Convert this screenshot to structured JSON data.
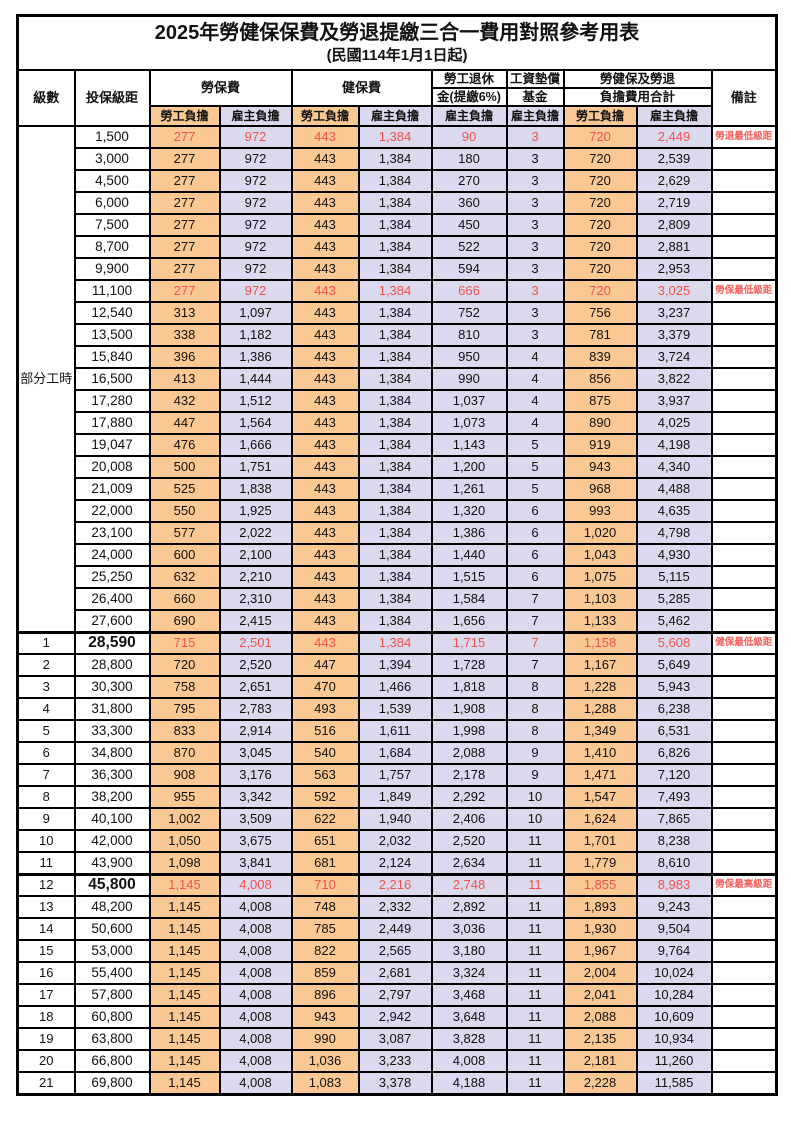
{
  "header": {
    "title": "2025年勞健保保費及勞退提繳三合一費用對照參考用表",
    "subtitle": "(民國114年1月1日起)"
  },
  "columns": {
    "level": "級數",
    "bracket": "投保級距",
    "labor_ins": "勞保費",
    "health_ins": "健保費",
    "pension_line1": "勞工退休",
    "pension_line2": "金(提繳6%)",
    "wage_fund_line1": "工資墊償",
    "wage_fund_line2": "基金",
    "total_line1": "勞健保及勞退",
    "total_line2": "負擔費用合計",
    "remark": "備註",
    "employee_share": "勞工負擔",
    "employer_share": "雇主負擔"
  },
  "part_time_label": "部分工時",
  "colors": {
    "employee_bg": "#FAC993",
    "employer_bg": "#DBD9EE",
    "highlight_text": "#F0524E",
    "border": "#000000"
  },
  "rows": [
    {
      "level": "",
      "bracket": "1,500",
      "values": [
        "277",
        "972",
        "443",
        "1,384",
        "90",
        "3",
        "720",
        "2,449"
      ],
      "remark": "勞退最低級距",
      "red": true,
      "bold": false
    },
    {
      "level": "",
      "bracket": "3,000",
      "values": [
        "277",
        "972",
        "443",
        "1,384",
        "180",
        "3",
        "720",
        "2,539"
      ],
      "remark": "",
      "red": false,
      "bold": false
    },
    {
      "level": "",
      "bracket": "4,500",
      "values": [
        "277",
        "972",
        "443",
        "1,384",
        "270",
        "3",
        "720",
        "2,629"
      ],
      "remark": "",
      "red": false,
      "bold": false
    },
    {
      "level": "",
      "bracket": "6,000",
      "values": [
        "277",
        "972",
        "443",
        "1,384",
        "360",
        "3",
        "720",
        "2,719"
      ],
      "remark": "",
      "red": false,
      "bold": false
    },
    {
      "level": "",
      "bracket": "7,500",
      "values": [
        "277",
        "972",
        "443",
        "1,384",
        "450",
        "3",
        "720",
        "2,809"
      ],
      "remark": "",
      "red": false,
      "bold": false
    },
    {
      "level": "",
      "bracket": "8,700",
      "values": [
        "277",
        "972",
        "443",
        "1,384",
        "522",
        "3",
        "720",
        "2,881"
      ],
      "remark": "",
      "red": false,
      "bold": false
    },
    {
      "level": "",
      "bracket": "9,900",
      "values": [
        "277",
        "972",
        "443",
        "1,384",
        "594",
        "3",
        "720",
        "2,953"
      ],
      "remark": "",
      "red": false,
      "bold": false
    },
    {
      "level": "",
      "bracket": "11,100",
      "values": [
        "277",
        "972",
        "443",
        "1,384",
        "666",
        "3",
        "720",
        "3,025"
      ],
      "remark": "勞保最低級距",
      "red": true,
      "bold": false
    },
    {
      "level": "",
      "bracket": "12,540",
      "values": [
        "313",
        "1,097",
        "443",
        "1,384",
        "752",
        "3",
        "756",
        "3,237"
      ],
      "remark": "",
      "red": false,
      "bold": false
    },
    {
      "level": "",
      "bracket": "13,500",
      "values": [
        "338",
        "1,182",
        "443",
        "1,384",
        "810",
        "3",
        "781",
        "3,379"
      ],
      "remark": "",
      "red": false,
      "bold": false
    },
    {
      "level": "",
      "bracket": "15,840",
      "values": [
        "396",
        "1,386",
        "443",
        "1,384",
        "950",
        "4",
        "839",
        "3,724"
      ],
      "remark": "",
      "red": false,
      "bold": false
    },
    {
      "level": "",
      "bracket": "16,500",
      "values": [
        "413",
        "1,444",
        "443",
        "1,384",
        "990",
        "4",
        "856",
        "3,822"
      ],
      "remark": "",
      "red": false,
      "bold": false
    },
    {
      "level": "",
      "bracket": "17,280",
      "values": [
        "432",
        "1,512",
        "443",
        "1,384",
        "1,037",
        "4",
        "875",
        "3,937"
      ],
      "remark": "",
      "red": false,
      "bold": false
    },
    {
      "level": "",
      "bracket": "17,880",
      "values": [
        "447",
        "1,564",
        "443",
        "1,384",
        "1,073",
        "4",
        "890",
        "4,025"
      ],
      "remark": "",
      "red": false,
      "bold": false
    },
    {
      "level": "",
      "bracket": "19,047",
      "values": [
        "476",
        "1,666",
        "443",
        "1,384",
        "1,143",
        "5",
        "919",
        "4,198"
      ],
      "remark": "",
      "red": false,
      "bold": false
    },
    {
      "level": "",
      "bracket": "20,008",
      "values": [
        "500",
        "1,751",
        "443",
        "1,384",
        "1,200",
        "5",
        "943",
        "4,340"
      ],
      "remark": "",
      "red": false,
      "bold": false
    },
    {
      "level": "",
      "bracket": "21,009",
      "values": [
        "525",
        "1,838",
        "443",
        "1,384",
        "1,261",
        "5",
        "968",
        "4,488"
      ],
      "remark": "",
      "red": false,
      "bold": false
    },
    {
      "level": "",
      "bracket": "22,000",
      "values": [
        "550",
        "1,925",
        "443",
        "1,384",
        "1,320",
        "6",
        "993",
        "4,635"
      ],
      "remark": "",
      "red": false,
      "bold": false
    },
    {
      "level": "",
      "bracket": "23,100",
      "values": [
        "577",
        "2,022",
        "443",
        "1,384",
        "1,386",
        "6",
        "1,020",
        "4,798"
      ],
      "remark": "",
      "red": false,
      "bold": false
    },
    {
      "level": "",
      "bracket": "24,000",
      "values": [
        "600",
        "2,100",
        "443",
        "1,384",
        "1,440",
        "6",
        "1,043",
        "4,930"
      ],
      "remark": "",
      "red": false,
      "bold": false
    },
    {
      "level": "",
      "bracket": "25,250",
      "values": [
        "632",
        "2,210",
        "443",
        "1,384",
        "1,515",
        "6",
        "1,075",
        "5,115"
      ],
      "remark": "",
      "red": false,
      "bold": false
    },
    {
      "level": "",
      "bracket": "26,400",
      "values": [
        "660",
        "2,310",
        "443",
        "1,384",
        "1,584",
        "7",
        "1,103",
        "5,285"
      ],
      "remark": "",
      "red": false,
      "bold": false
    },
    {
      "level": "",
      "bracket": "27,600",
      "values": [
        "690",
        "2,415",
        "443",
        "1,384",
        "1,656",
        "7",
        "1,133",
        "5,462"
      ],
      "remark": "",
      "red": false,
      "bold": false
    },
    {
      "level": "1",
      "bracket": "28,590",
      "values": [
        "715",
        "2,501",
        "443",
        "1,384",
        "1,715",
        "7",
        "1,158",
        "5,608"
      ],
      "remark": "健保最低級距",
      "red": true,
      "bold": true,
      "thickTop": true
    },
    {
      "level": "2",
      "bracket": "28,800",
      "values": [
        "720",
        "2,520",
        "447",
        "1,394",
        "1,728",
        "7",
        "1,167",
        "5,649"
      ],
      "remark": "",
      "red": false,
      "bold": false
    },
    {
      "level": "3",
      "bracket": "30,300",
      "values": [
        "758",
        "2,651",
        "470",
        "1,466",
        "1,818",
        "8",
        "1,228",
        "5,943"
      ],
      "remark": "",
      "red": false,
      "bold": false
    },
    {
      "level": "4",
      "bracket": "31,800",
      "values": [
        "795",
        "2,783",
        "493",
        "1,539",
        "1,908",
        "8",
        "1,288",
        "6,238"
      ],
      "remark": "",
      "red": false,
      "bold": false
    },
    {
      "level": "5",
      "bracket": "33,300",
      "values": [
        "833",
        "2,914",
        "516",
        "1,611",
        "1,998",
        "8",
        "1,349",
        "6,531"
      ],
      "remark": "",
      "red": false,
      "bold": false
    },
    {
      "level": "6",
      "bracket": "34,800",
      "values": [
        "870",
        "3,045",
        "540",
        "1,684",
        "2,088",
        "9",
        "1,410",
        "6,826"
      ],
      "remark": "",
      "red": false,
      "bold": false
    },
    {
      "level": "7",
      "bracket": "36,300",
      "values": [
        "908",
        "3,176",
        "563",
        "1,757",
        "2,178",
        "9",
        "1,471",
        "7,120"
      ],
      "remark": "",
      "red": false,
      "bold": false
    },
    {
      "level": "8",
      "bracket": "38,200",
      "values": [
        "955",
        "3,342",
        "592",
        "1,849",
        "2,292",
        "10",
        "1,547",
        "7,493"
      ],
      "remark": "",
      "red": false,
      "bold": false
    },
    {
      "level": "9",
      "bracket": "40,100",
      "values": [
        "1,002",
        "3,509",
        "622",
        "1,940",
        "2,406",
        "10",
        "1,624",
        "7,865"
      ],
      "remark": "",
      "red": false,
      "bold": false
    },
    {
      "level": "10",
      "bracket": "42,000",
      "values": [
        "1,050",
        "3,675",
        "651",
        "2,032",
        "2,520",
        "11",
        "1,701",
        "8,238"
      ],
      "remark": "",
      "red": false,
      "bold": false
    },
    {
      "level": "11",
      "bracket": "43,900",
      "values": [
        "1,098",
        "3,841",
        "681",
        "2,124",
        "2,634",
        "11",
        "1,779",
        "8,610"
      ],
      "remark": "",
      "red": false,
      "bold": false
    },
    {
      "level": "12",
      "bracket": "45,800",
      "values": [
        "1,145",
        "4,008",
        "710",
        "2,216",
        "2,748",
        "11",
        "1,855",
        "8,983"
      ],
      "remark": "勞保最高級距",
      "red": true,
      "bold": true,
      "thickTop": true
    },
    {
      "level": "13",
      "bracket": "48,200",
      "values": [
        "1,145",
        "4,008",
        "748",
        "2,332",
        "2,892",
        "11",
        "1,893",
        "9,243"
      ],
      "remark": "",
      "red": false,
      "bold": false
    },
    {
      "level": "14",
      "bracket": "50,600",
      "values": [
        "1,145",
        "4,008",
        "785",
        "2,449",
        "3,036",
        "11",
        "1,930",
        "9,504"
      ],
      "remark": "",
      "red": false,
      "bold": false
    },
    {
      "level": "15",
      "bracket": "53,000",
      "values": [
        "1,145",
        "4,008",
        "822",
        "2,565",
        "3,180",
        "11",
        "1,967",
        "9,764"
      ],
      "remark": "",
      "red": false,
      "bold": false
    },
    {
      "level": "16",
      "bracket": "55,400",
      "values": [
        "1,145",
        "4,008",
        "859",
        "2,681",
        "3,324",
        "11",
        "2,004",
        "10,024"
      ],
      "remark": "",
      "red": false,
      "bold": false
    },
    {
      "level": "17",
      "bracket": "57,800",
      "values": [
        "1,145",
        "4,008",
        "896",
        "2,797",
        "3,468",
        "11",
        "2,041",
        "10,284"
      ],
      "remark": "",
      "red": false,
      "bold": false
    },
    {
      "level": "18",
      "bracket": "60,800",
      "values": [
        "1,145",
        "4,008",
        "943",
        "2,942",
        "3,648",
        "11",
        "2,088",
        "10,609"
      ],
      "remark": "",
      "red": false,
      "bold": false
    },
    {
      "level": "19",
      "bracket": "63,800",
      "values": [
        "1,145",
        "4,008",
        "990",
        "3,087",
        "3,828",
        "11",
        "2,135",
        "10,934"
      ],
      "remark": "",
      "red": false,
      "bold": false
    },
    {
      "level": "20",
      "bracket": "66,800",
      "values": [
        "1,145",
        "4,008",
        "1,036",
        "3,233",
        "4,008",
        "11",
        "2,181",
        "11,260"
      ],
      "remark": "",
      "red": false,
      "bold": false
    },
    {
      "level": "21",
      "bracket": "69,800",
      "values": [
        "1,145",
        "4,008",
        "1,083",
        "3,378",
        "4,188",
        "11",
        "2,228",
        "11,585"
      ],
      "remark": "",
      "red": false,
      "bold": false
    }
  ]
}
